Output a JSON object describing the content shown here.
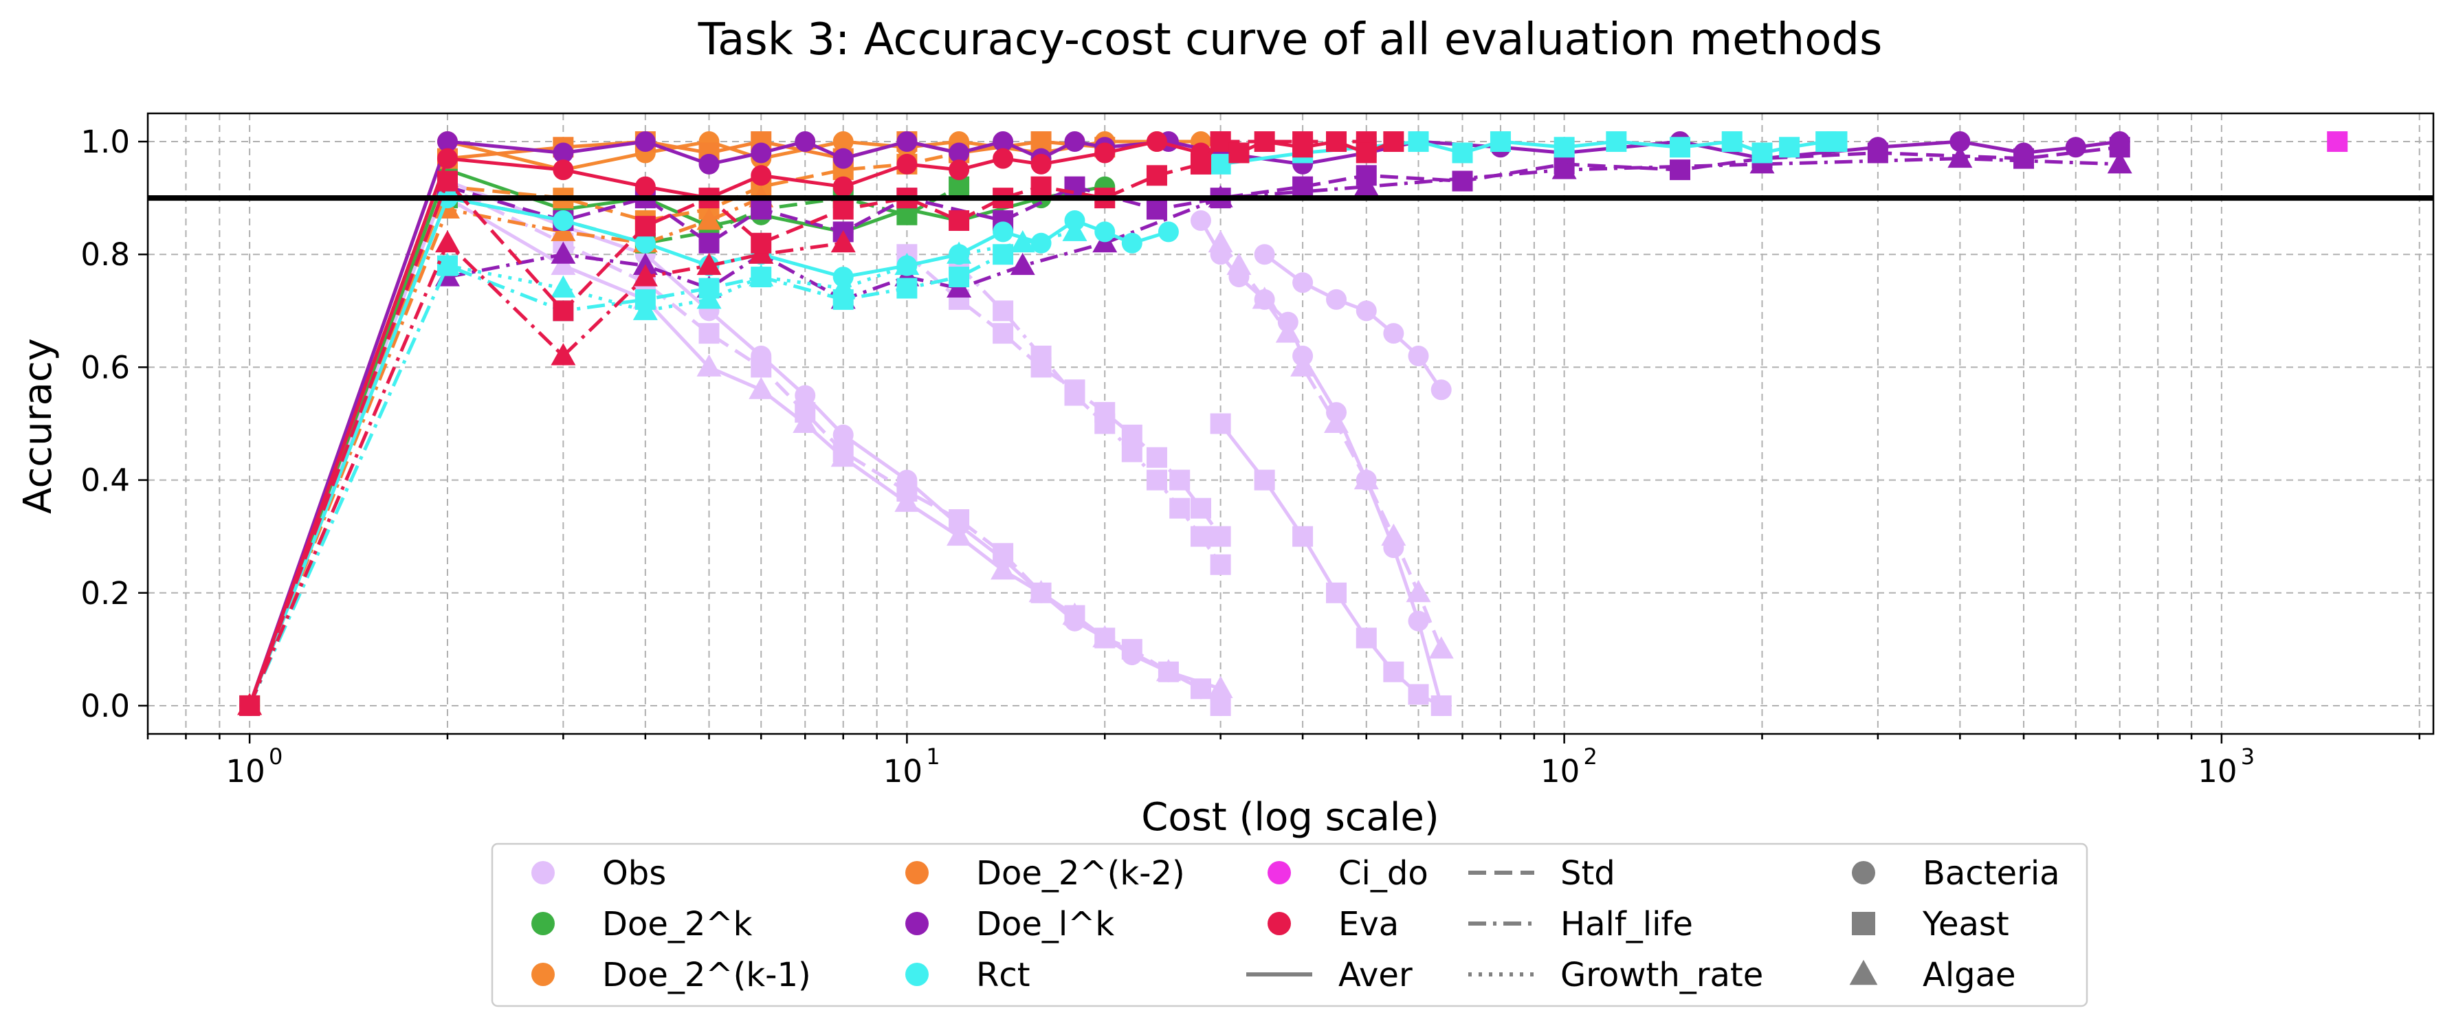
{
  "chart_data": {
    "type": "line",
    "title": "Task 3: Accuracy-cost curve of all evaluation methods",
    "xlabel": "Cost (log scale)",
    "ylabel": "Accuracy",
    "xscale": "log",
    "xlim": [
      0.7,
      2100
    ],
    "ylim": [
      -0.05,
      1.05
    ],
    "x_major_ticks": [
      1,
      10,
      100,
      1000
    ],
    "x_tick_labels": [
      {
        "base": "10",
        "exp": "0"
      },
      {
        "base": "10",
        "exp": "1"
      },
      {
        "base": "10",
        "exp": "2"
      },
      {
        "base": "10",
        "exp": "3"
      }
    ],
    "y_ticks": [
      0.0,
      0.2,
      0.4,
      0.6,
      0.8,
      1.0
    ],
    "y_tick_labels": [
      "0.0",
      "0.2",
      "0.4",
      "0.6",
      "0.8",
      "1.0"
    ],
    "grid": true,
    "reference_line": {
      "y": 0.9,
      "color": "#000000"
    },
    "legend_placement": "below plot",
    "methods": [
      {
        "name": "Obs",
        "color": "#e2bffb"
      },
      {
        "name": "Doe_2^k",
        "color": "#3cb043"
      },
      {
        "name": "Doe_2^(k-1)",
        "color": "#f58831"
      },
      {
        "name": "Doe_2^(k-2)",
        "color": "#f58231"
      },
      {
        "name": "Doe_l^k",
        "color": "#911eb4"
      },
      {
        "name": "Rct",
        "color": "#42f0f0"
      },
      {
        "name": "Ci_do",
        "color": "#f032e6"
      },
      {
        "name": "Eva",
        "color": "#e6194b"
      }
    ],
    "aggregations": [
      {
        "name": "Aver",
        "dash": "solid"
      },
      {
        "name": "Std",
        "dash": "dashed"
      },
      {
        "name": "Half_life",
        "dash": "dashdot"
      },
      {
        "name": "Growth_rate",
        "dash": "dotted"
      }
    ],
    "organisms": [
      {
        "name": "Bacteria",
        "marker": "circle"
      },
      {
        "name": "Yeast",
        "marker": "square"
      },
      {
        "name": "Algae",
        "marker": "triangle"
      }
    ],
    "series": [
      {
        "method": "Obs",
        "agg": "Aver",
        "marker": "circle",
        "x": [
          1,
          2,
          3,
          4,
          5,
          6,
          7,
          8,
          10,
          12,
          14,
          16,
          18,
          20,
          22,
          25,
          28,
          30
        ],
        "y": [
          0,
          0.93,
          0.85,
          0.8,
          0.7,
          0.62,
          0.55,
          0.48,
          0.4,
          0.32,
          0.26,
          0.2,
          0.15,
          0.12,
          0.09,
          0.06,
          0.03,
          0.01
        ]
      },
      {
        "method": "Obs",
        "agg": "Std",
        "marker": "square",
        "x": [
          1,
          2,
          3,
          4,
          5,
          6,
          7,
          8,
          10,
          12,
          14,
          16,
          18,
          20,
          22,
          25,
          28,
          30
        ],
        "y": [
          0,
          0.92,
          0.82,
          0.75,
          0.66,
          0.6,
          0.52,
          0.45,
          0.38,
          0.33,
          0.27,
          0.2,
          0.16,
          0.12,
          0.1,
          0.06,
          0.03,
          0.0
        ]
      },
      {
        "method": "Obs",
        "agg": "Aver",
        "marker": "triangle",
        "x": [
          1,
          2,
          3,
          4,
          5,
          6,
          7,
          8,
          10,
          12,
          14,
          16,
          18,
          20,
          25,
          30
        ],
        "y": [
          0,
          0.9,
          0.78,
          0.72,
          0.6,
          0.56,
          0.5,
          0.44,
          0.36,
          0.3,
          0.24,
          0.2,
          0.16,
          0.12,
          0.06,
          0.03
        ]
      },
      {
        "method": "Obs",
        "agg": "Std",
        "marker": "square",
        "x": [
          10,
          12,
          14,
          16,
          18,
          20,
          22,
          24,
          26,
          28,
          30
        ],
        "y": [
          0.8,
          0.72,
          0.66,
          0.6,
          0.56,
          0.52,
          0.48,
          0.44,
          0.4,
          0.35,
          0.3
        ]
      },
      {
        "method": "Obs",
        "agg": "Half_life",
        "marker": "square",
        "x": [
          12,
          14,
          16,
          18,
          20,
          22,
          24,
          26,
          28,
          30
        ],
        "y": [
          0.78,
          0.7,
          0.62,
          0.55,
          0.5,
          0.45,
          0.4,
          0.35,
          0.3,
          0.25
        ]
      },
      {
        "method": "Obs",
        "agg": "Aver",
        "marker": "circle",
        "x": [
          28,
          30,
          32,
          35,
          38,
          40,
          45,
          50,
          55,
          60,
          65
        ],
        "y": [
          0.86,
          0.8,
          0.76,
          0.72,
          0.68,
          0.62,
          0.52,
          0.4,
          0.28,
          0.15,
          0.0
        ]
      },
      {
        "method": "Obs",
        "agg": "Std",
        "marker": "triangle",
        "x": [
          30,
          32,
          35,
          38,
          40,
          45,
          50,
          55,
          60,
          65
        ],
        "y": [
          0.82,
          0.78,
          0.72,
          0.66,
          0.6,
          0.5,
          0.4,
          0.3,
          0.2,
          0.1
        ]
      },
      {
        "method": "Obs",
        "agg": "Aver",
        "marker": "circle",
        "x": [
          35,
          40,
          45,
          50,
          55,
          60,
          65
        ],
        "y": [
          0.8,
          0.75,
          0.72,
          0.7,
          0.66,
          0.62,
          0.56
        ]
      },
      {
        "method": "Obs",
        "agg": "Aver",
        "marker": "square",
        "x": [
          30,
          35,
          40,
          45,
          50,
          55,
          60,
          65
        ],
        "y": [
          0.5,
          0.4,
          0.3,
          0.2,
          0.12,
          0.06,
          0.02,
          0.0
        ]
      },
      {
        "method": "Doe_2^k",
        "agg": "Aver",
        "marker": "circle",
        "x": [
          1,
          2,
          3,
          4,
          5,
          6,
          8,
          10,
          12,
          16,
          20
        ],
        "y": [
          0,
          0.95,
          0.88,
          0.9,
          0.85,
          0.87,
          0.84,
          0.88,
          0.86,
          0.9,
          0.92
        ]
      },
      {
        "method": "Doe_2^k",
        "agg": "Std",
        "marker": "square",
        "x": [
          1,
          2,
          3,
          4,
          5,
          6,
          8,
          10,
          12
        ],
        "y": [
          0,
          0.9,
          0.86,
          0.82,
          0.84,
          0.88,
          0.9,
          0.87,
          0.92
        ]
      },
      {
        "method": "Doe_2^(k-1)",
        "agg": "Aver",
        "marker": "circle",
        "x": [
          1,
          2,
          3,
          4,
          5,
          6,
          8,
          10,
          12,
          16,
          20,
          24,
          28
        ],
        "y": [
          0,
          1.0,
          0.95,
          0.98,
          1.0,
          0.97,
          1.0,
          0.99,
          1.0,
          0.98,
          1.0,
          1.0,
          1.0
        ]
      },
      {
        "method": "Doe_2^(k-1)",
        "agg": "Std",
        "marker": "square",
        "x": [
          1,
          2,
          3,
          4,
          5,
          6,
          8,
          10,
          12
        ],
        "y": [
          0,
          0.92,
          0.9,
          0.86,
          0.88,
          0.92,
          0.95,
          0.96,
          0.98
        ]
      },
      {
        "method": "Doe_2^(k-2)",
        "agg": "Aver",
        "marker": "square",
        "x": [
          1,
          2,
          3,
          4,
          5,
          6,
          8,
          10,
          12,
          16,
          20
        ],
        "y": [
          0,
          0.97,
          0.99,
          1.0,
          0.98,
          1.0,
          0.97,
          1.0,
          0.98,
          1.0,
          0.99
        ]
      },
      {
        "method": "Doe_2^(k-2)",
        "agg": "Half_life",
        "marker": "triangle",
        "x": [
          1,
          2,
          3,
          4,
          5,
          6
        ],
        "y": [
          0,
          0.88,
          0.84,
          0.82,
          0.86,
          0.9
        ]
      },
      {
        "method": "Doe_l^k",
        "agg": "Aver",
        "marker": "circle",
        "x": [
          1,
          2,
          3,
          4,
          5,
          6,
          7,
          8,
          10,
          12,
          14,
          16,
          18,
          20,
          25,
          30,
          40,
          50,
          60,
          80,
          100,
          150,
          200,
          300,
          400,
          500,
          600,
          700
        ],
        "y": [
          0,
          1.0,
          0.98,
          1.0,
          0.96,
          0.98,
          1.0,
          0.97,
          1.0,
          0.98,
          1.0,
          0.97,
          1.0,
          0.99,
          1.0,
          0.98,
          0.96,
          0.98,
          1.0,
          0.99,
          0.98,
          1.0,
          0.97,
          0.99,
          1.0,
          0.98,
          0.99,
          1.0
        ]
      },
      {
        "method": "Doe_l^k",
        "agg": "Std",
        "marker": "square",
        "x": [
          2,
          3,
          4,
          5,
          6,
          8,
          10,
          14,
          18,
          24,
          30,
          40,
          50,
          70,
          100,
          150,
          200,
          300,
          500,
          700
        ],
        "y": [
          0.92,
          0.86,
          0.9,
          0.82,
          0.88,
          0.84,
          0.9,
          0.86,
          0.92,
          0.88,
          0.9,
          0.92,
          0.94,
          0.93,
          0.96,
          0.95,
          0.97,
          0.98,
          0.97,
          0.99
        ]
      },
      {
        "method": "Doe_l^k",
        "agg": "Half_life",
        "marker": "triangle",
        "x": [
          2,
          3,
          4,
          5,
          6,
          8,
          10,
          12,
          15,
          20,
          30,
          50,
          100,
          200,
          400,
          700
        ],
        "y": [
          0.76,
          0.8,
          0.78,
          0.74,
          0.8,
          0.72,
          0.76,
          0.74,
          0.78,
          0.82,
          0.9,
          0.92,
          0.95,
          0.96,
          0.97,
          0.96
        ]
      },
      {
        "method": "Rct",
        "agg": "Aver",
        "marker": "circle",
        "x": [
          1,
          2,
          3,
          4,
          5,
          6,
          8,
          10,
          12,
          14,
          16,
          18,
          20,
          22,
          25
        ],
        "y": [
          0,
          0.9,
          0.86,
          0.82,
          0.78,
          0.8,
          0.76,
          0.78,
          0.8,
          0.84,
          0.82,
          0.86,
          0.84,
          0.82,
          0.84
        ]
      },
      {
        "method": "Rct",
        "agg": "Half_life",
        "marker": "square",
        "x": [
          1,
          2,
          3,
          4,
          5,
          6,
          8,
          10,
          12,
          14
        ],
        "y": [
          0,
          0.78,
          0.7,
          0.72,
          0.74,
          0.76,
          0.72,
          0.74,
          0.76,
          0.8
        ]
      },
      {
        "method": "Rct",
        "agg": "Aver",
        "marker": "square",
        "x": [
          30,
          40,
          50,
          60,
          70,
          80,
          100,
          120,
          150,
          180,
          200,
          220,
          250,
          260
        ],
        "y": [
          0.96,
          0.98,
          0.99,
          1.0,
          0.98,
          1.0,
          0.99,
          1.0,
          0.99,
          1.0,
          0.98,
          0.99,
          1.0,
          1.0
        ]
      },
      {
        "method": "Rct",
        "agg": "Growth_rate",
        "marker": "triangle",
        "x": [
          2,
          3,
          4,
          5,
          6,
          8,
          10,
          12,
          15,
          18
        ],
        "y": [
          0.78,
          0.74,
          0.7,
          0.72,
          0.76,
          0.74,
          0.78,
          0.8,
          0.82,
          0.84
        ]
      },
      {
        "method": "Ci_do",
        "agg": "Aver",
        "marker": "square",
        "x": [
          1500
        ],
        "y": [
          1.0
        ]
      },
      {
        "method": "Eva",
        "agg": "Aver",
        "marker": "circle",
        "x": [
          1,
          2,
          3,
          4,
          5,
          6,
          8,
          10,
          12,
          14,
          16,
          20,
          24,
          28
        ],
        "y": [
          0,
          0.97,
          0.95,
          0.92,
          0.9,
          0.94,
          0.92,
          0.96,
          0.95,
          0.97,
          0.96,
          0.98,
          1.0,
          0.98
        ]
      },
      {
        "method": "Eva",
        "agg": "Half_life",
        "marker": "triangle",
        "x": [
          1,
          2,
          3,
          4,
          5,
          6,
          8
        ],
        "y": [
          0,
          0.82,
          0.62,
          0.76,
          0.78,
          0.8,
          0.82
        ]
      },
      {
        "method": "Eva",
        "agg": "Std",
        "marker": "square",
        "x": [
          1,
          2,
          3,
          4,
          5,
          6,
          8,
          10,
          12,
          14,
          16,
          20,
          24,
          28,
          30,
          40,
          50
        ],
        "y": [
          0,
          0.93,
          0.7,
          0.85,
          0.9,
          0.82,
          0.88,
          0.9,
          0.86,
          0.9,
          0.92,
          0.9,
          0.94,
          0.96,
          1.0,
          1.0,
          1.0
        ]
      },
      {
        "method": "Eva",
        "agg": "Aver",
        "marker": "square",
        "x": [
          28,
          30,
          32,
          35,
          40,
          45,
          50,
          55
        ],
        "y": [
          0.96,
          1.0,
          0.98,
          1.0,
          0.99,
          1.0,
          0.98,
          1.0
        ]
      }
    ]
  }
}
